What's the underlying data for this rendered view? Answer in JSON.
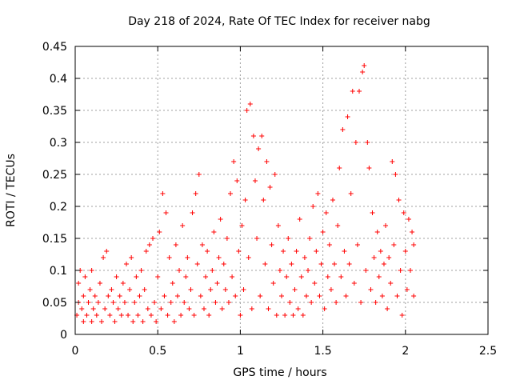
{
  "chart_data": {
    "type": "scatter",
    "title": "Day 218 of 2024, Rate Of TEC Index for receiver nabg",
    "xlabel": "GPS time / hours",
    "ylabel": "ROTI / TECUs",
    "xlim": [
      0,
      2.5
    ],
    "ylim": [
      0,
      0.45
    ],
    "x_ticks": [
      0,
      0.5,
      1,
      1.5,
      2,
      2.5
    ],
    "x_tick_labels": [
      "0",
      "0.5",
      "1",
      "1.5",
      "2",
      "2.5"
    ],
    "y_ticks": [
      0,
      0.05,
      0.1,
      0.15,
      0.2,
      0.25,
      0.3,
      0.35,
      0.4,
      0.45
    ],
    "y_tick_labels": [
      "0",
      "0.05",
      "0.1",
      "0.15",
      "0.2",
      "0.25",
      "0.3",
      "0.35",
      "0.4",
      "0.45"
    ],
    "grid": true,
    "marker": "plus",
    "color": "#ff0000",
    "points": [
      [
        0.01,
        0.03
      ],
      [
        0.02,
        0.05
      ],
      [
        0.02,
        0.08
      ],
      [
        0.03,
        0.1
      ],
      [
        0.04,
        0.04
      ],
      [
        0.05,
        0.06
      ],
      [
        0.05,
        0.02
      ],
      [
        0.06,
        0.09
      ],
      [
        0.07,
        0.03
      ],
      [
        0.08,
        0.05
      ],
      [
        0.09,
        0.07
      ],
      [
        0.1,
        0.02
      ],
      [
        0.1,
        0.1
      ],
      [
        0.11,
        0.04
      ],
      [
        0.12,
        0.06
      ],
      [
        0.13,
        0.03
      ],
      [
        0.14,
        0.05
      ],
      [
        0.15,
        0.08
      ],
      [
        0.16,
        0.02
      ],
      [
        0.17,
        0.12
      ],
      [
        0.18,
        0.04
      ],
      [
        0.19,
        0.13
      ],
      [
        0.2,
        0.06
      ],
      [
        0.21,
        0.03
      ],
      [
        0.22,
        0.07
      ],
      [
        0.23,
        0.05
      ],
      [
        0.24,
        0.02
      ],
      [
        0.25,
        0.09
      ],
      [
        0.26,
        0.04
      ],
      [
        0.27,
        0.06
      ],
      [
        0.28,
        0.03
      ],
      [
        0.29,
        0.08
      ],
      [
        0.3,
        0.05
      ],
      [
        0.31,
        0.11
      ],
      [
        0.32,
        0.03
      ],
      [
        0.33,
        0.07
      ],
      [
        0.34,
        0.12
      ],
      [
        0.35,
        0.02
      ],
      [
        0.36,
        0.05
      ],
      [
        0.37,
        0.09
      ],
      [
        0.38,
        0.03
      ],
      [
        0.39,
        0.06
      ],
      [
        0.4,
        0.1
      ],
      [
        0.41,
        0.02
      ],
      [
        0.42,
        0.07
      ],
      [
        0.43,
        0.13
      ],
      [
        0.44,
        0.04
      ],
      [
        0.45,
        0.14
      ],
      [
        0.46,
        0.03
      ],
      [
        0.47,
        0.15
      ],
      [
        0.48,
        0.05
      ],
      [
        0.49,
        0.02
      ],
      [
        0.5,
        0.09
      ],
      [
        0.51,
        0.16
      ],
      [
        0.52,
        0.04
      ],
      [
        0.53,
        0.22
      ],
      [
        0.54,
        0.06
      ],
      [
        0.55,
        0.19
      ],
      [
        0.56,
        0.03
      ],
      [
        0.57,
        0.12
      ],
      [
        0.58,
        0.05
      ],
      [
        0.59,
        0.08
      ],
      [
        0.6,
        0.02
      ],
      [
        0.61,
        0.14
      ],
      [
        0.62,
        0.06
      ],
      [
        0.63,
        0.1
      ],
      [
        0.64,
        0.03
      ],
      [
        0.65,
        0.17
      ],
      [
        0.66,
        0.05
      ],
      [
        0.67,
        0.09
      ],
      [
        0.68,
        0.12
      ],
      [
        0.69,
        0.04
      ],
      [
        0.7,
        0.07
      ],
      [
        0.71,
        0.19
      ],
      [
        0.72,
        0.03
      ],
      [
        0.73,
        0.22
      ],
      [
        0.74,
        0.11
      ],
      [
        0.75,
        0.25
      ],
      [
        0.76,
        0.06
      ],
      [
        0.77,
        0.14
      ],
      [
        0.78,
        0.04
      ],
      [
        0.79,
        0.09
      ],
      [
        0.8,
        0.13
      ],
      [
        0.81,
        0.03
      ],
      [
        0.82,
        0.07
      ],
      [
        0.83,
        0.1
      ],
      [
        0.84,
        0.16
      ],
      [
        0.85,
        0.05
      ],
      [
        0.86,
        0.08
      ],
      [
        0.87,
        0.12
      ],
      [
        0.88,
        0.18
      ],
      [
        0.89,
        0.04
      ],
      [
        0.9,
        0.11
      ],
      [
        0.91,
        0.07
      ],
      [
        0.92,
        0.15
      ],
      [
        0.93,
        0.05
      ],
      [
        0.94,
        0.22
      ],
      [
        0.95,
        0.09
      ],
      [
        0.96,
        0.27
      ],
      [
        0.97,
        0.06
      ],
      [
        0.98,
        0.24
      ],
      [
        0.99,
        0.13
      ],
      [
        1.0,
        0.03
      ],
      [
        1.01,
        0.17
      ],
      [
        1.02,
        0.07
      ],
      [
        1.03,
        0.21
      ],
      [
        1.04,
        0.35
      ],
      [
        1.05,
        0.12
      ],
      [
        1.06,
        0.36
      ],
      [
        1.07,
        0.04
      ],
      [
        1.08,
        0.31
      ],
      [
        1.09,
        0.24
      ],
      [
        1.1,
        0.15
      ],
      [
        1.11,
        0.29
      ],
      [
        1.12,
        0.06
      ],
      [
        1.13,
        0.31
      ],
      [
        1.14,
        0.21
      ],
      [
        1.15,
        0.11
      ],
      [
        1.16,
        0.27
      ],
      [
        1.17,
        0.04
      ],
      [
        1.18,
        0.23
      ],
      [
        1.19,
        0.14
      ],
      [
        1.2,
        0.08
      ],
      [
        1.21,
        0.25
      ],
      [
        1.22,
        0.03
      ],
      [
        1.23,
        0.17
      ],
      [
        1.24,
        0.1
      ],
      [
        1.25,
        0.06
      ],
      [
        1.26,
        0.13
      ],
      [
        1.27,
        0.03
      ],
      [
        1.28,
        0.09
      ],
      [
        1.29,
        0.15
      ],
      [
        1.3,
        0.05
      ],
      [
        1.31,
        0.11
      ],
      [
        1.32,
        0.03
      ],
      [
        1.33,
        0.07
      ],
      [
        1.34,
        0.13
      ],
      [
        1.35,
        0.04
      ],
      [
        1.36,
        0.18
      ],
      [
        1.37,
        0.09
      ],
      [
        1.38,
        0.03
      ],
      [
        1.39,
        0.12
      ],
      [
        1.4,
        0.06
      ],
      [
        1.41,
        0.1
      ],
      [
        1.42,
        0.15
      ],
      [
        1.43,
        0.05
      ],
      [
        1.44,
        0.2
      ],
      [
        1.45,
        0.08
      ],
      [
        1.46,
        0.13
      ],
      [
        1.47,
        0.22
      ],
      [
        1.48,
        0.06
      ],
      [
        1.49,
        0.11
      ],
      [
        1.5,
        0.16
      ],
      [
        1.51,
        0.04
      ],
      [
        1.52,
        0.19
      ],
      [
        1.53,
        0.09
      ],
      [
        1.54,
        0.14
      ],
      [
        1.55,
        0.07
      ],
      [
        1.56,
        0.21
      ],
      [
        1.57,
        0.11
      ],
      [
        1.58,
        0.05
      ],
      [
        1.59,
        0.17
      ],
      [
        1.6,
        0.26
      ],
      [
        1.61,
        0.09
      ],
      [
        1.62,
        0.32
      ],
      [
        1.63,
        0.13
      ],
      [
        1.64,
        0.06
      ],
      [
        1.65,
        0.34
      ],
      [
        1.66,
        0.11
      ],
      [
        1.67,
        0.22
      ],
      [
        1.68,
        0.38
      ],
      [
        1.69,
        0.08
      ],
      [
        1.7,
        0.3
      ],
      [
        1.71,
        0.14
      ],
      [
        1.72,
        0.38
      ],
      [
        1.73,
        0.05
      ],
      [
        1.74,
        0.41
      ],
      [
        1.75,
        0.42
      ],
      [
        1.76,
        0.1
      ],
      [
        1.77,
        0.3
      ],
      [
        1.78,
        0.26
      ],
      [
        1.79,
        0.07
      ],
      [
        1.8,
        0.19
      ],
      [
        1.81,
        0.12
      ],
      [
        1.82,
        0.05
      ],
      [
        1.83,
        0.16
      ],
      [
        1.84,
        0.09
      ],
      [
        1.85,
        0.13
      ],
      [
        1.86,
        0.06
      ],
      [
        1.87,
        0.11
      ],
      [
        1.88,
        0.17
      ],
      [
        1.89,
        0.04
      ],
      [
        1.9,
        0.12
      ],
      [
        1.91,
        0.08
      ],
      [
        1.92,
        0.27
      ],
      [
        1.93,
        0.14
      ],
      [
        1.94,
        0.25
      ],
      [
        1.95,
        0.06
      ],
      [
        1.96,
        0.21
      ],
      [
        1.97,
        0.1
      ],
      [
        1.98,
        0.03
      ],
      [
        1.99,
        0.19
      ],
      [
        2.0,
        0.13
      ],
      [
        2.01,
        0.07
      ],
      [
        2.02,
        0.18
      ],
      [
        2.03,
        0.1
      ],
      [
        2.04,
        0.16
      ],
      [
        2.05,
        0.06
      ],
      [
        2.05,
        0.14
      ]
    ]
  }
}
